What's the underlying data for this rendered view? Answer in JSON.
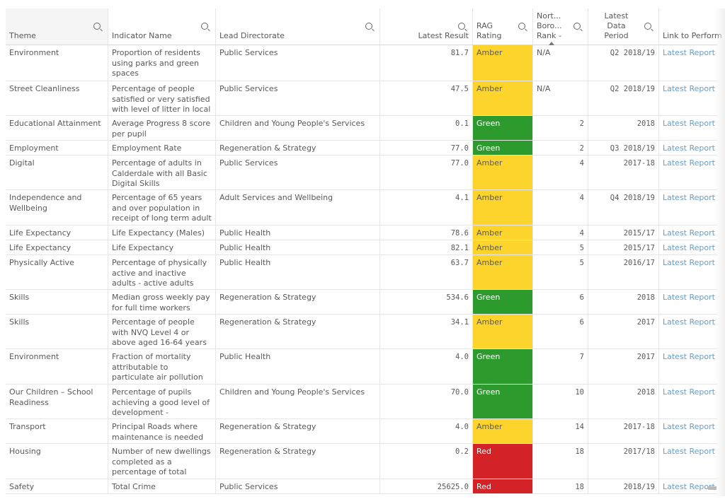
{
  "colors": {
    "Amber": "#fcd42c",
    "Green": "#2d9a2d",
    "Red": "#d42327"
  },
  "headers": [
    "Theme",
    "Indicator Name",
    "Lead Directorate",
    "Latest Result",
    "RAG Rating",
    "Nort... Boro... Rank -",
    "Latest Data Period",
    "Link to Perform"
  ],
  "rows": [
    {
      "theme": "Environment",
      "indicator": "Proportion of residents using parks and green spaces",
      "directorate": "Public Services",
      "result": "81.7",
      "rag": "Amber",
      "rank": "N/A",
      "period": "Q2 2018/19",
      "link": "Latest Report"
    },
    {
      "theme": "Street Cleanliness",
      "indicator": "Percentage of people satisfied or very satisfied with level of litter in local",
      "directorate": "Public Services",
      "result": "47.5",
      "rag": "Amber",
      "rank": "N/A",
      "period": "Q2 2018/19",
      "link": "Latest Report"
    },
    {
      "theme": "Educational Attainment",
      "indicator": "Average Progress 8 score per pupil",
      "directorate": "Children and Young People's Services",
      "result": "0.1",
      "rag": "Green",
      "rank": "2",
      "period": "2018",
      "link": "Latest Report"
    },
    {
      "theme": "Employment",
      "indicator": "Employment Rate",
      "directorate": "Regeneration & Strategy",
      "result": "77.0",
      "rag": "Green",
      "rank": "2",
      "period": "Q3 2018/19",
      "link": "Latest Report"
    },
    {
      "theme": "Digital",
      "indicator": "Percentage of adults in Calderdale with all Basic Digital Skills",
      "directorate": "Public Services",
      "result": "77.0",
      "rag": "Amber",
      "rank": "4",
      "period": "2017-18",
      "link": "Latest Report"
    },
    {
      "theme": "Independence and Wellbeing",
      "indicator": "Percentage of 65 years and over population in receipt of long term adult health",
      "directorate": "Adult Services and Wellbeing",
      "result": "4.1",
      "rag": "Amber",
      "rank": "4",
      "period": "Q4 2018/19",
      "link": "Latest Report"
    },
    {
      "theme": "Life Expectancy",
      "indicator": "Life Expectancy (Males)",
      "directorate": "Public Health",
      "result": "78.6",
      "rag": "Amber",
      "rank": "4",
      "period": "2015/17",
      "link": "Latest Report"
    },
    {
      "theme": "Life Expectancy",
      "indicator": "Life Expectancy (Females)",
      "directorate": "Public Health",
      "result": "82.1",
      "rag": "Amber",
      "rank": "5",
      "period": "2015/17",
      "link": "Latest Report"
    },
    {
      "theme": "Physically Active",
      "indicator": "Percentage of physically active and inactive adults - active adults",
      "directorate": "Public Health",
      "result": "63.7",
      "rag": "Amber",
      "rank": "5",
      "period": "2016/17",
      "link": "Latest Report"
    },
    {
      "theme": "Skills",
      "indicator": "Median gross weekly pay for full time workers",
      "directorate": "Regeneration & Strategy",
      "result": "534.6",
      "rag": "Green",
      "rank": "6",
      "period": "2018",
      "link": "Latest Report"
    },
    {
      "theme": "Skills",
      "indicator": "Percentage of people with NVQ Level 4 or above aged 16-64 years",
      "directorate": "Regeneration & Strategy",
      "result": "34.1",
      "rag": "Amber",
      "rank": "6",
      "period": "2017",
      "link": "Latest Report"
    },
    {
      "theme": "Environment",
      "indicator": "Fraction of mortality attributable to particulate air pollution",
      "directorate": "Public Health",
      "result": "4.0",
      "rag": "Green",
      "rank": "7",
      "period": "2017",
      "link": "Latest Report"
    },
    {
      "theme": "Our Children – School Readiness",
      "indicator": "Percentage of pupils achieving a good level of development - Foundation",
      "directorate": "Children and Young People's Services",
      "result": "70.0",
      "rag": "Green",
      "rank": "10",
      "period": "2018",
      "link": "Latest Report"
    },
    {
      "theme": "Transport",
      "indicator": "Principal Roads where maintenance is needed",
      "directorate": "Regeneration & Strategy",
      "result": "4.0",
      "rag": "Amber",
      "rank": "14",
      "period": "2017-18",
      "link": "Latest Report"
    },
    {
      "theme": "Housing",
      "indicator": "Number of new dwellings completed as a percentage of total dwellings in",
      "directorate": "Regeneration & Strategy",
      "result": "0.2",
      "rag": "Red",
      "rank": "18",
      "period": "2017/18",
      "link": "Latest Report"
    },
    {
      "theme": "Safety",
      "indicator": "Total Crime",
      "directorate": "Public Services",
      "result": "25625.0",
      "rag": "Red",
      "rank": "18",
      "period": "2018/19",
      "link": "Latest Report"
    }
  ]
}
